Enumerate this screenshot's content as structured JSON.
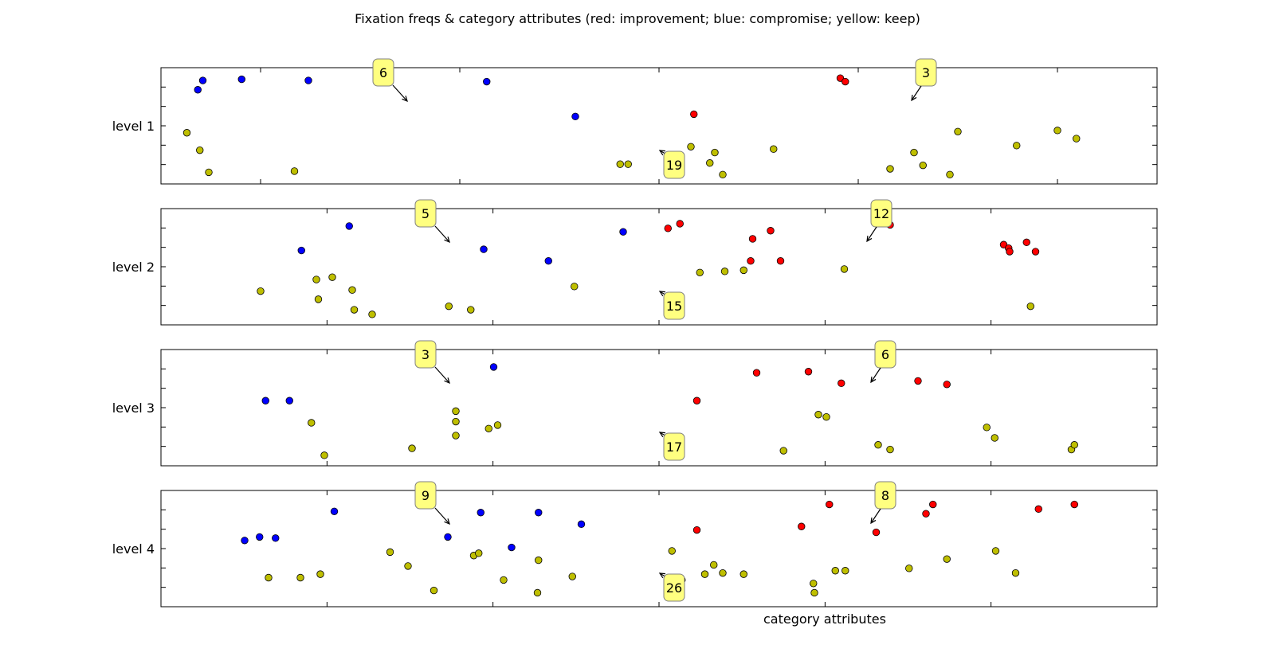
{
  "chart_data": {
    "type": "scatter",
    "title": "Fixation freqs & category attributes (red: improvement; blue: compromise; yellow: keep)",
    "xlabel": "category attributes",
    "legend": "none",
    "grid": false,
    "colors": {
      "improvement": "#ff0000",
      "compromise": "#0000ff",
      "keep": "#bfbf00"
    },
    "panels": [
      {
        "ylabel": "level 1",
        "counts": {
          "compromise": "6",
          "improvement": "3",
          "keep": "19"
        },
        "points": {
          "compromise": [
            [
              0.037,
              0.81
            ],
            [
              0.042,
              0.89
            ],
            [
              0.081,
              0.9
            ],
            [
              0.148,
              0.89
            ],
            [
              0.327,
              0.88
            ],
            [
              0.416,
              0.58
            ]
          ],
          "improvement": [
            [
              0.682,
              0.91
            ],
            [
              0.687,
              0.88
            ],
            [
              0.535,
              0.6
            ]
          ],
          "keep": [
            [
              0.026,
              0.44
            ],
            [
              0.039,
              0.29
            ],
            [
              0.048,
              0.1
            ],
            [
              0.134,
              0.11
            ],
            [
              0.461,
              0.17
            ],
            [
              0.469,
              0.17
            ],
            [
              0.532,
              0.32
            ],
            [
              0.551,
              0.18
            ],
            [
              0.556,
              0.27
            ],
            [
              0.564,
              0.08
            ],
            [
              0.615,
              0.3
            ],
            [
              0.732,
              0.13
            ],
            [
              0.756,
              0.27
            ],
            [
              0.765,
              0.16
            ],
            [
              0.792,
              0.08
            ],
            [
              0.8,
              0.45
            ],
            [
              0.859,
              0.33
            ],
            [
              0.9,
              0.46
            ],
            [
              0.919,
              0.39
            ]
          ]
        }
      },
      {
        "ylabel": "level 2",
        "counts": {
          "compromise": "5",
          "improvement": "12",
          "keep": "15"
        },
        "points": {
          "compromise": [
            [
              0.141,
              0.64
            ],
            [
              0.189,
              0.85
            ],
            [
              0.324,
              0.65
            ],
            [
              0.389,
              0.55
            ],
            [
              0.464,
              0.8
            ]
          ],
          "improvement": [
            [
              0.509,
              0.83
            ],
            [
              0.521,
              0.87
            ],
            [
              0.592,
              0.55
            ],
            [
              0.594,
              0.74
            ],
            [
              0.612,
              0.81
            ],
            [
              0.622,
              0.55
            ],
            [
              0.732,
              0.86
            ],
            [
              0.846,
              0.69
            ],
            [
              0.851,
              0.66
            ],
            [
              0.852,
              0.63
            ],
            [
              0.869,
              0.71
            ],
            [
              0.878,
              0.63
            ]
          ],
          "keep": [
            [
              0.1,
              0.29
            ],
            [
              0.156,
              0.39
            ],
            [
              0.158,
              0.22
            ],
            [
              0.172,
              0.41
            ],
            [
              0.192,
              0.3
            ],
            [
              0.194,
              0.13
            ],
            [
              0.212,
              0.09
            ],
            [
              0.289,
              0.16
            ],
            [
              0.311,
              0.13
            ],
            [
              0.415,
              0.33
            ],
            [
              0.541,
              0.45
            ],
            [
              0.566,
              0.46
            ],
            [
              0.585,
              0.47
            ],
            [
              0.686,
              0.48
            ],
            [
              0.873,
              0.16
            ]
          ]
        }
      },
      {
        "ylabel": "level 3",
        "counts": {
          "compromise": "3",
          "improvement": "6",
          "keep": "17"
        },
        "points": {
          "compromise": [
            [
              0.105,
              0.56
            ],
            [
              0.129,
              0.56
            ],
            [
              0.334,
              0.85
            ]
          ],
          "improvement": [
            [
              0.538,
              0.56
            ],
            [
              0.598,
              0.8
            ],
            [
              0.65,
              0.81
            ],
            [
              0.683,
              0.71
            ],
            [
              0.76,
              0.73
            ],
            [
              0.789,
              0.7
            ]
          ],
          "keep": [
            [
              0.151,
              0.37
            ],
            [
              0.164,
              0.09
            ],
            [
              0.252,
              0.15
            ],
            [
              0.296,
              0.47
            ],
            [
              0.296,
              0.38
            ],
            [
              0.296,
              0.26
            ],
            [
              0.329,
              0.32
            ],
            [
              0.338,
              0.35
            ],
            [
              0.625,
              0.13
            ],
            [
              0.66,
              0.44
            ],
            [
              0.668,
              0.42
            ],
            [
              0.72,
              0.18
            ],
            [
              0.732,
              0.14
            ],
            [
              0.829,
              0.33
            ],
            [
              0.837,
              0.24
            ],
            [
              0.914,
              0.14
            ],
            [
              0.917,
              0.18
            ]
          ]
        }
      },
      {
        "ylabel": "level 4",
        "counts": {
          "compromise": "9",
          "improvement": "8",
          "keep": "26"
        },
        "points": {
          "compromise": [
            [
              0.084,
              0.57
            ],
            [
              0.099,
              0.6
            ],
            [
              0.115,
              0.59
            ],
            [
              0.174,
              0.82
            ],
            [
              0.288,
              0.6
            ],
            [
              0.321,
              0.81
            ],
            [
              0.352,
              0.51
            ],
            [
              0.379,
              0.81
            ],
            [
              0.422,
              0.71
            ]
          ],
          "improvement": [
            [
              0.538,
              0.66
            ],
            [
              0.643,
              0.69
            ],
            [
              0.671,
              0.88
            ],
            [
              0.718,
              0.64
            ],
            [
              0.768,
              0.8
            ],
            [
              0.775,
              0.88
            ],
            [
              0.881,
              0.84
            ],
            [
              0.917,
              0.88
            ]
          ],
          "keep": [
            [
              0.108,
              0.25
            ],
            [
              0.14,
              0.25
            ],
            [
              0.16,
              0.28
            ],
            [
              0.23,
              0.47
            ],
            [
              0.248,
              0.35
            ],
            [
              0.274,
              0.14
            ],
            [
              0.314,
              0.44
            ],
            [
              0.319,
              0.46
            ],
            [
              0.344,
              0.23
            ],
            [
              0.378,
              0.12
            ],
            [
              0.379,
              0.4
            ],
            [
              0.413,
              0.26
            ],
            [
              0.513,
              0.48
            ],
            [
              0.523,
              0.23
            ],
            [
              0.546,
              0.28
            ],
            [
              0.555,
              0.36
            ],
            [
              0.564,
              0.29
            ],
            [
              0.585,
              0.28
            ],
            [
              0.655,
              0.2
            ],
            [
              0.656,
              0.12
            ],
            [
              0.677,
              0.31
            ],
            [
              0.687,
              0.31
            ],
            [
              0.751,
              0.33
            ],
            [
              0.789,
              0.41
            ],
            [
              0.838,
              0.48
            ],
            [
              0.858,
              0.29
            ]
          ]
        }
      }
    ]
  }
}
